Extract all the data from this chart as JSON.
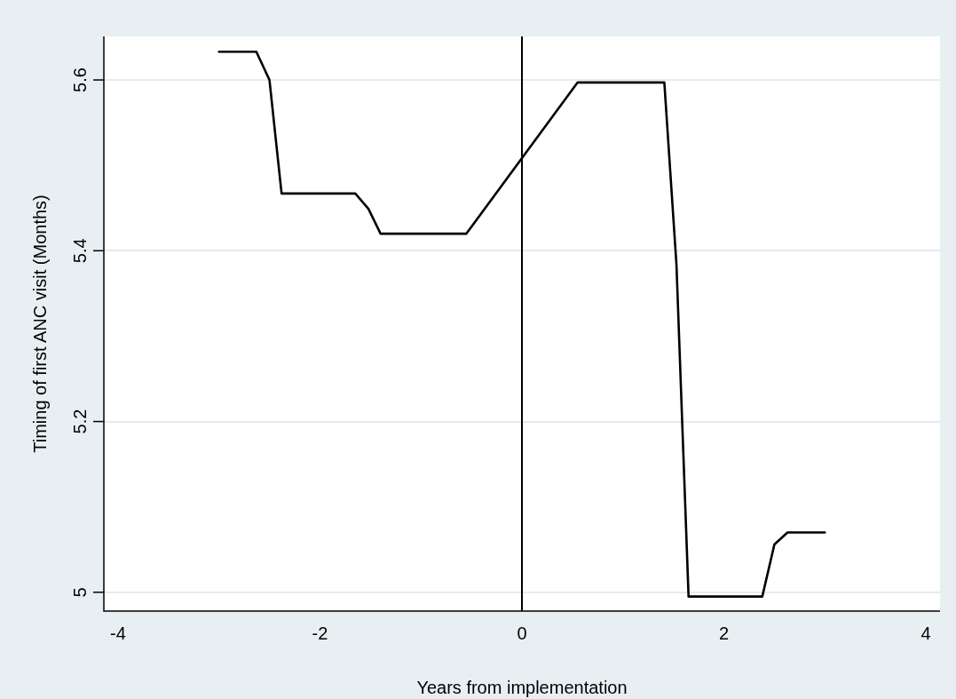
{
  "chart_data": {
    "type": "line",
    "xlabel": "Years from implementation",
    "ylabel": "Timing of first ANC visit (Months)",
    "x": [
      -3,
      -2.63,
      -2.5,
      -2.38,
      -1.65,
      -1.52,
      -1.4,
      -0.55,
      0.55,
      1.41,
      1.53,
      1.65,
      2.38,
      2.5,
      2.63,
      3
    ],
    "series": [
      {
        "color": "#000000",
        "values": [
          5.633,
          5.633,
          5.6,
          5.467,
          5.467,
          5.449,
          5.42,
          5.42,
          5.597,
          5.597,
          5.384,
          4.995,
          4.995,
          5.056,
          5.07,
          5.07
        ]
      }
    ],
    "xlim": [
      -4.14,
      4.14
    ],
    "xticks": [
      -4,
      -2,
      0,
      2,
      4
    ],
    "ylim": [
      4.978,
      5.651
    ],
    "yticks": [
      5,
      5.2,
      5.4,
      5.6
    ],
    "ref_lines": [
      {
        "axis": "x",
        "value": 0,
        "color": "#000000"
      }
    ],
    "grid": "y",
    "legend": false,
    "marker": "none",
    "line_style": "solid"
  }
}
